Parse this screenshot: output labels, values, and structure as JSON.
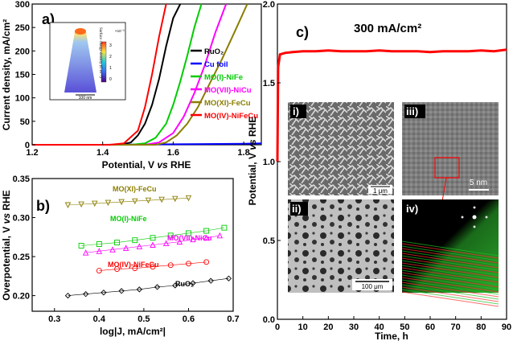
{
  "panels": {
    "a": {
      "label": "a)",
      "xlabel_prefix": "Potential,  V ",
      "xlabel_italic": "vs",
      "xlabel_suffix": " RHE",
      "ylabel": "Current density, mA/cm²",
      "xticks": [
        "1.2",
        "1.4",
        "1.6",
        "1.8"
      ],
      "yticks": [
        "0",
        "50",
        "100",
        "150",
        "200",
        "250",
        "300"
      ],
      "legend": [
        {
          "name": "RuO₂",
          "color": "#000000"
        },
        {
          "name": "Cu foil",
          "color": "#0000ff"
        },
        {
          "name": "MO(I)-NiFe",
          "color": "#00cc00"
        },
        {
          "name": "MO(VII)-NiCu",
          "color": "#ff00ff"
        },
        {
          "name": "MO(XI)-FeCu",
          "color": "#8b7d00"
        },
        {
          "name": "MO(IV)-NiFeCu",
          "color": "#ff0000"
        }
      ],
      "inset": {
        "colorbar_title": "Surface charge density (C m⁻²)",
        "colorbar_exp": "×10⁻³",
        "colorbar_ticks": [
          "3",
          "2",
          "1",
          "0"
        ],
        "scale": "100 nm"
      }
    },
    "b": {
      "label": "b)",
      "xlabel": "log|J, mA/cm²|",
      "ylabel_prefix": "Overpotential, V ",
      "ylabel_italic": "vs",
      "ylabel_suffix": " RHE",
      "xticks": [
        "0.3",
        "0.4",
        "0.5",
        "0.6",
        "0.7"
      ],
      "yticks": [
        "0.20",
        "0.25",
        "0.30",
        "0.35"
      ],
      "labels": [
        {
          "text": "MO(XI)-FeCu",
          "color": "#8b7d00"
        },
        {
          "text": "MO(I)-NiFe",
          "color": "#00cc00"
        },
        {
          "text": "MO(VII)-NiCu",
          "color": "#ff00ff"
        },
        {
          "text": "MO(IV)-NiFeCu",
          "color": "#ff0000"
        },
        {
          "text": "RuO₂",
          "color": "#000000"
        }
      ]
    },
    "c": {
      "label": "c)",
      "title": "300 mA/cm²",
      "xlabel": "Time, h",
      "ylabel_prefix": "Potential, V ",
      "ylabel_italic": "vs",
      "ylabel_suffix": " RHE",
      "xticks": [
        "0",
        "10",
        "20",
        "30",
        "40",
        "50",
        "60",
        "70",
        "80",
        "90"
      ],
      "yticks": [
        "0.0",
        "0.5",
        "1.0",
        "1.5",
        "2.0"
      ],
      "sub": {
        "i": {
          "label": "i)",
          "scale": "1 μm"
        },
        "ii": {
          "label": "ii)",
          "scale": "100 μm"
        },
        "iii": {
          "label": "iii)",
          "scale": "5 nm"
        },
        "iv": {
          "label": "iv)"
        }
      }
    }
  },
  "chart_data": [
    {
      "type": "line",
      "title": "",
      "xlabel": "Potential, V vs RHE",
      "ylabel": "Current density, mA/cm²",
      "xlim": [
        1.2,
        1.85
      ],
      "ylim": [
        0,
        300
      ],
      "series": [
        {
          "name": "RuO₂",
          "color": "#000000",
          "x": [
            1.2,
            1.45,
            1.48,
            1.5,
            1.52,
            1.54,
            1.56,
            1.58,
            1.6,
            1.62
          ],
          "y": [
            0,
            0,
            5,
            20,
            45,
            85,
            140,
            210,
            270,
            300
          ]
        },
        {
          "name": "Cu foil",
          "color": "#0000ff",
          "x": [
            1.2,
            1.4,
            1.6,
            1.8,
            1.85
          ],
          "y": [
            0,
            0,
            1,
            2,
            3
          ]
        },
        {
          "name": "MO(I)-NiFe",
          "color": "#00cc00",
          "x": [
            1.2,
            1.48,
            1.52,
            1.55,
            1.58,
            1.6,
            1.62,
            1.64,
            1.66,
            1.68
          ],
          "y": [
            0,
            0,
            3,
            15,
            45,
            85,
            135,
            190,
            250,
            300
          ]
        },
        {
          "name": "MO(VII)-NiCu",
          "color": "#ff00ff",
          "x": [
            1.2,
            1.52,
            1.56,
            1.6,
            1.63,
            1.66,
            1.69,
            1.72,
            1.75
          ],
          "y": [
            0,
            0,
            5,
            25,
            60,
            110,
            170,
            240,
            300
          ]
        },
        {
          "name": "MO(XI)-FeCu",
          "color": "#8b7d00",
          "x": [
            1.2,
            1.55,
            1.58,
            1.61,
            1.64,
            1.67,
            1.7,
            1.74,
            1.78,
            1.81
          ],
          "y": [
            0,
            0,
            5,
            20,
            45,
            80,
            125,
            185,
            250,
            300
          ]
        },
        {
          "name": "MO(IV)-NiFeCu",
          "color": "#ff0000",
          "x": [
            1.2,
            1.36,
            1.42,
            1.46,
            1.5,
            1.52,
            1.54,
            1.56,
            1.58
          ],
          "y": [
            0,
            0,
            0,
            3,
            30,
            80,
            150,
            230,
            300
          ]
        }
      ]
    },
    {
      "type": "scatter",
      "title": "",
      "xlabel": "log|J, mA/cm²|",
      "ylabel": "Overpotential, V vs RHE",
      "xlim": [
        0.25,
        0.7
      ],
      "ylim": [
        0.18,
        0.35
      ],
      "series": [
        {
          "name": "MO(XI)-FeCu",
          "color": "#8b7d00",
          "marker": "triangle-down",
          "x": [
            0.33,
            0.36,
            0.39,
            0.42,
            0.45,
            0.48,
            0.51,
            0.54,
            0.57,
            0.6
          ],
          "y": [
            0.316,
            0.317,
            0.318,
            0.319,
            0.32,
            0.321,
            0.322,
            0.323,
            0.324,
            0.325
          ]
        },
        {
          "name": "MO(I)-NiFe",
          "color": "#00cc00",
          "marker": "square",
          "x": [
            0.36,
            0.4,
            0.44,
            0.48,
            0.52,
            0.56,
            0.6,
            0.64,
            0.68
          ],
          "y": [
            0.264,
            0.266,
            0.268,
            0.271,
            0.274,
            0.277,
            0.28,
            0.283,
            0.287
          ]
        },
        {
          "name": "MO(VII)-NiCu",
          "color": "#ff00ff",
          "marker": "triangle-up",
          "x": [
            0.37,
            0.4,
            0.43,
            0.46,
            0.49,
            0.52,
            0.55,
            0.58,
            0.61,
            0.64,
            0.67
          ],
          "y": [
            0.255,
            0.257,
            0.259,
            0.261,
            0.263,
            0.265,
            0.267,
            0.269,
            0.272,
            0.274,
            0.277
          ]
        },
        {
          "name": "MO(IV)-NiFeCu",
          "color": "#ff0000",
          "marker": "circle",
          "x": [
            0.4,
            0.44,
            0.48,
            0.52,
            0.56,
            0.6,
            0.64
          ],
          "y": [
            0.232,
            0.234,
            0.235,
            0.237,
            0.239,
            0.241,
            0.243
          ]
        },
        {
          "name": "RuO₂",
          "color": "#000000",
          "marker": "diamond",
          "x": [
            0.33,
            0.37,
            0.41,
            0.45,
            0.49,
            0.53,
            0.57,
            0.61,
            0.65,
            0.69
          ],
          "y": [
            0.2,
            0.202,
            0.204,
            0.206,
            0.208,
            0.211,
            0.213,
            0.216,
            0.219,
            0.222
          ]
        }
      ]
    },
    {
      "type": "line",
      "title": "300 mA/cm²",
      "xlabel": "Time, h",
      "ylabel": "Potential, V vs RHE",
      "xlim": [
        0,
        90
      ],
      "ylim": [
        0,
        2.0
      ],
      "series": [
        {
          "name": "",
          "color": "#ff0000",
          "x": [
            0,
            0.3,
            1,
            3,
            6,
            10,
            15,
            20,
            25,
            30,
            35,
            40,
            45,
            50,
            55,
            60,
            65,
            70,
            75,
            80,
            85,
            90
          ],
          "y": [
            1.0,
            1.6,
            1.68,
            1.69,
            1.695,
            1.7,
            1.7,
            1.705,
            1.7,
            1.7,
            1.7,
            1.705,
            1.7,
            1.7,
            1.7,
            1.695,
            1.7,
            1.7,
            1.7,
            1.705,
            1.7,
            1.71
          ]
        }
      ]
    }
  ]
}
